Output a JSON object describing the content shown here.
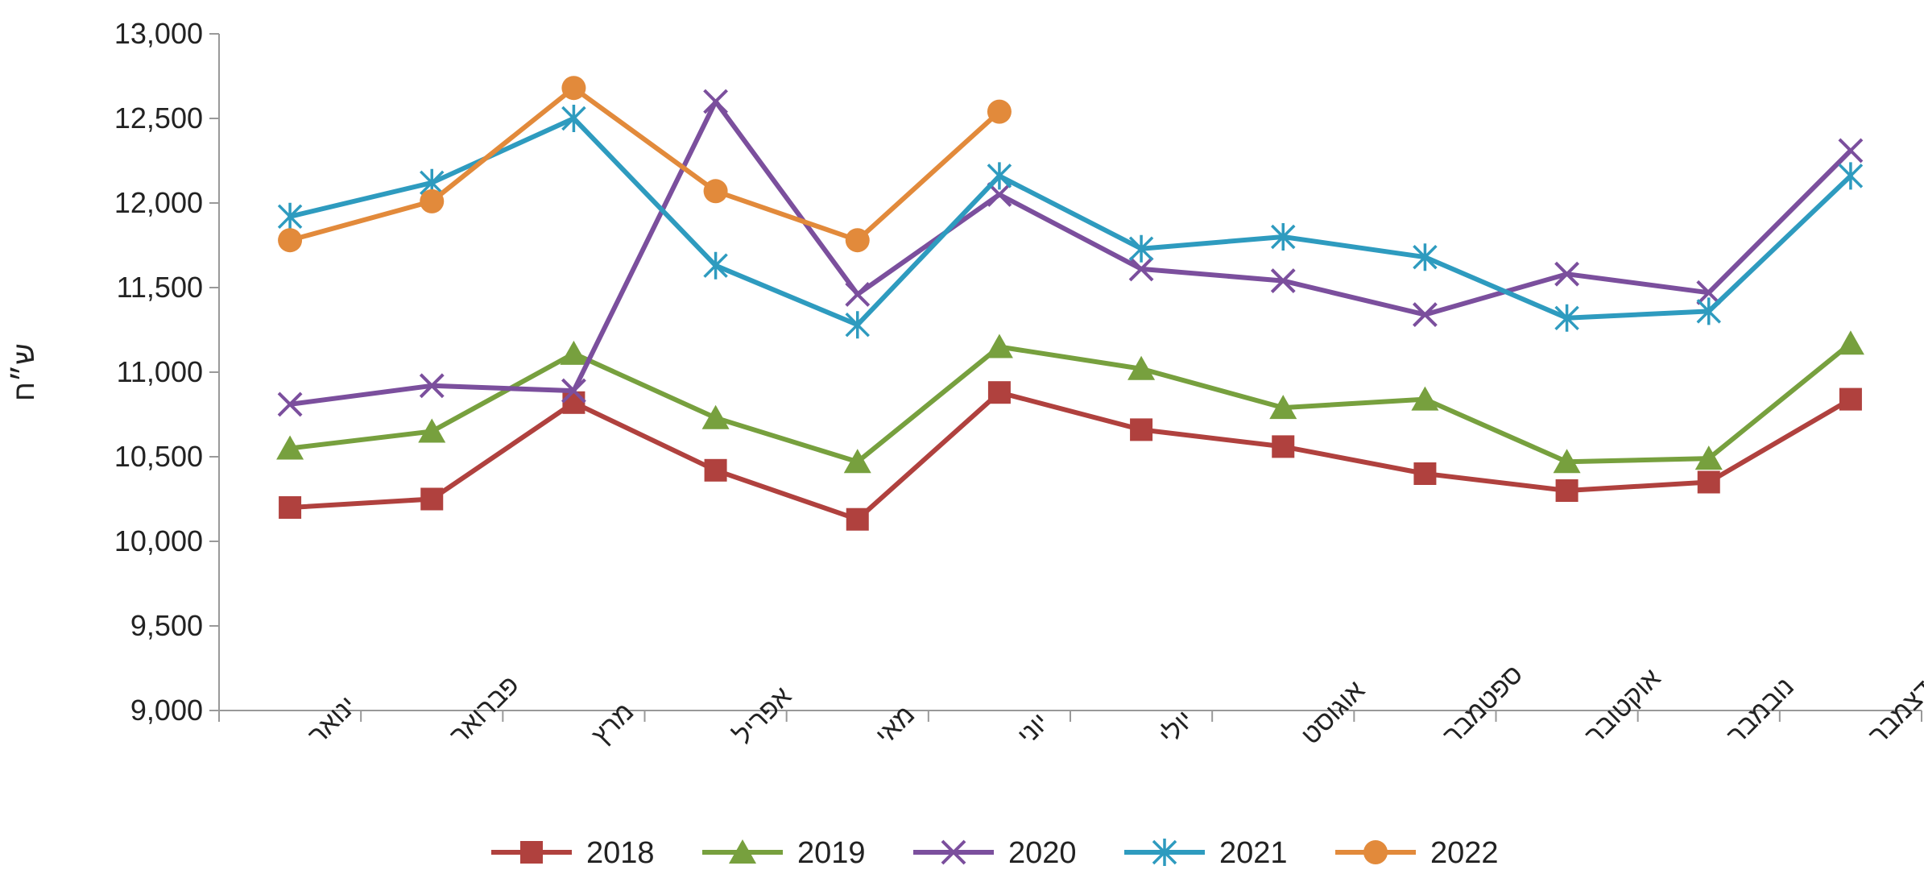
{
  "chart_data": {
    "type": "line",
    "title": "",
    "xlabel": "",
    "ylabel": "ש״ח",
    "ylim": [
      9000,
      13000
    ],
    "y_ticks": [
      9000,
      9500,
      10000,
      10500,
      11000,
      11500,
      12000,
      12500,
      13000
    ],
    "y_tick_labels": [
      "9,000",
      "9,500",
      "10,000",
      "10,500",
      "11,000",
      "11,500",
      "12,000",
      "12,500",
      "13,000"
    ],
    "categories": [
      "ינואר",
      "פברואר",
      "מרץ",
      "אפריל",
      "מאי",
      "יוני",
      "יולי",
      "אוגוסט",
      "ספטמבר",
      "אוקטובר",
      "נובמבר",
      "דצמבר"
    ],
    "grid": false,
    "legend_position": "bottom",
    "series": [
      {
        "name": "2018",
        "color": "#B0413E",
        "marker": "square",
        "values": [
          10200,
          10250,
          10820,
          10420,
          10130,
          10880,
          10660,
          10560,
          10400,
          10300,
          10350,
          10840
        ]
      },
      {
        "name": "2019",
        "color": "#77A03E",
        "marker": "triangle",
        "values": [
          10550,
          10650,
          11110,
          10730,
          10470,
          11150,
          11020,
          10790,
          10840,
          10470,
          10490,
          11170
        ]
      },
      {
        "name": "2020",
        "color": "#7B4F9D",
        "marker": "x",
        "values": [
          10810,
          10920,
          10890,
          12600,
          11460,
          12050,
          11610,
          11540,
          11340,
          11580,
          11470,
          12310
        ]
      },
      {
        "name": "2021",
        "color": "#2E9BBF",
        "marker": "star",
        "values": [
          11920,
          12120,
          12500,
          11630,
          11280,
          12160,
          11730,
          11800,
          11680,
          11320,
          11360,
          12160
        ]
      },
      {
        "name": "2022",
        "color": "#E28A3B",
        "marker": "circle",
        "values": [
          11780,
          12010,
          12680,
          12070,
          11780,
          12540,
          null,
          null,
          null,
          null,
          null,
          null
        ]
      }
    ]
  }
}
